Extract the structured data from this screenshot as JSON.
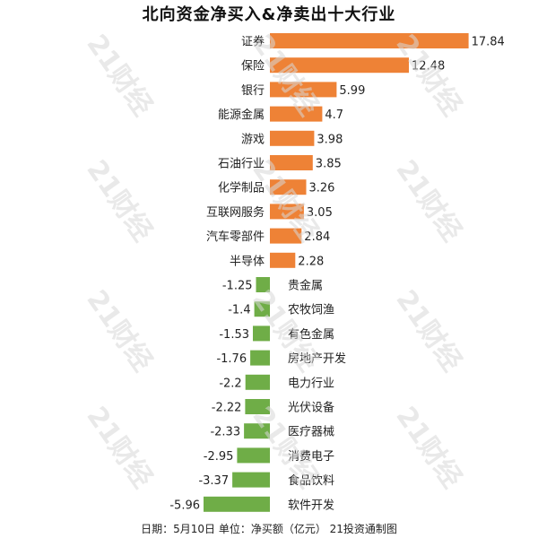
{
  "chart_data": {
    "type": "bar",
    "orientation": "horizontal",
    "title": "北向资金净买入&净卖出十大行业",
    "categories": [
      "证券",
      "保险",
      "银行",
      "能源金属",
      "游戏",
      "石油行业",
      "化学制品",
      "互联网服务",
      "汽车零部件",
      "半导体",
      "贵金属",
      "农牧饲渔",
      "有色金属",
      "房地产开发",
      "电力行业",
      "光伏设备",
      "医疗器械",
      "消费电子",
      "食品饮料",
      "软件开发"
    ],
    "values": [
      17.84,
      12.48,
      5.99,
      4.7,
      3.98,
      3.85,
      3.26,
      3.05,
      2.84,
      2.28,
      -1.25,
      -1.4,
      -1.53,
      -1.76,
      -2.2,
      -2.22,
      -2.33,
      -2.95,
      -3.37,
      -5.96
    ],
    "value_labels": [
      "17.84",
      "12.48",
      "5.99",
      "4.7",
      "3.98",
      "3.85",
      "3.26",
      "3.05",
      "2.84",
      "2.28",
      "-1.25",
      "-1.4",
      "-1.53",
      "-1.76",
      "-2.2",
      "-2.22",
      "-2.33",
      "-2.95",
      "-3.37",
      "-5.96"
    ],
    "colors": {
      "positive": "#ee8236",
      "negative": "#6fad47"
    },
    "xlim": [
      -5.96,
      17.84
    ],
    "grid": false,
    "legend": "none"
  },
  "footer": "日期：5月10日 单位：净买额（亿元） 21投资通制图",
  "watermark": "21财经"
}
